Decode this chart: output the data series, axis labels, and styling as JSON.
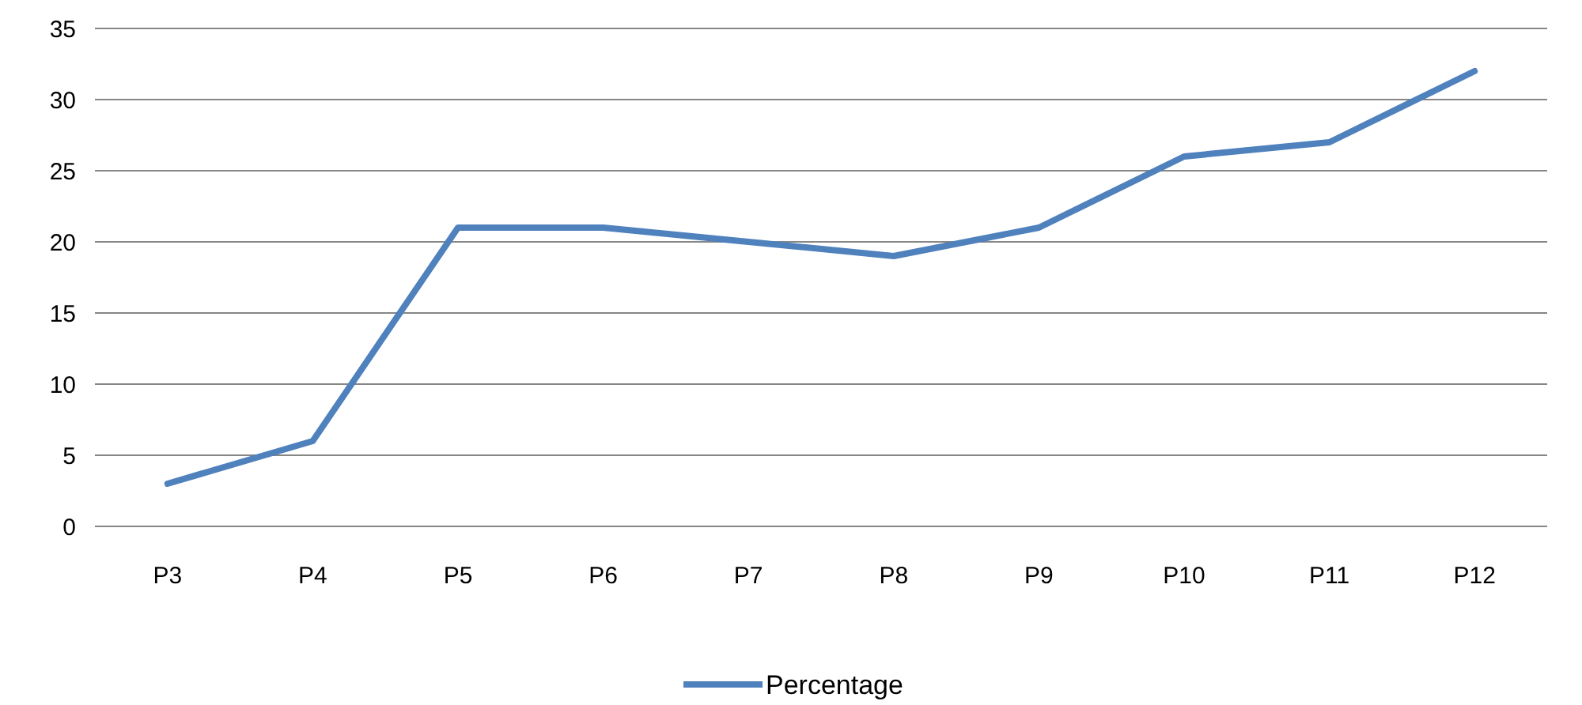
{
  "chart_data": {
    "type": "line",
    "categories": [
      "P3",
      "P4",
      "P5",
      "P6",
      "P7",
      "P8",
      "P9",
      "P10",
      "P11",
      "P12"
    ],
    "series": [
      {
        "name": "Percentage",
        "color": "#4f81bd",
        "values": [
          3,
          6,
          21,
          21,
          20,
          19,
          21,
          26,
          27,
          32
        ]
      }
    ],
    "ylim": [
      0,
      35
    ],
    "yticks": [
      0,
      5,
      10,
      15,
      20,
      25,
      30,
      35
    ],
    "grid": "y",
    "legend": "bottom",
    "marker": "none",
    "line_style": "solid"
  }
}
